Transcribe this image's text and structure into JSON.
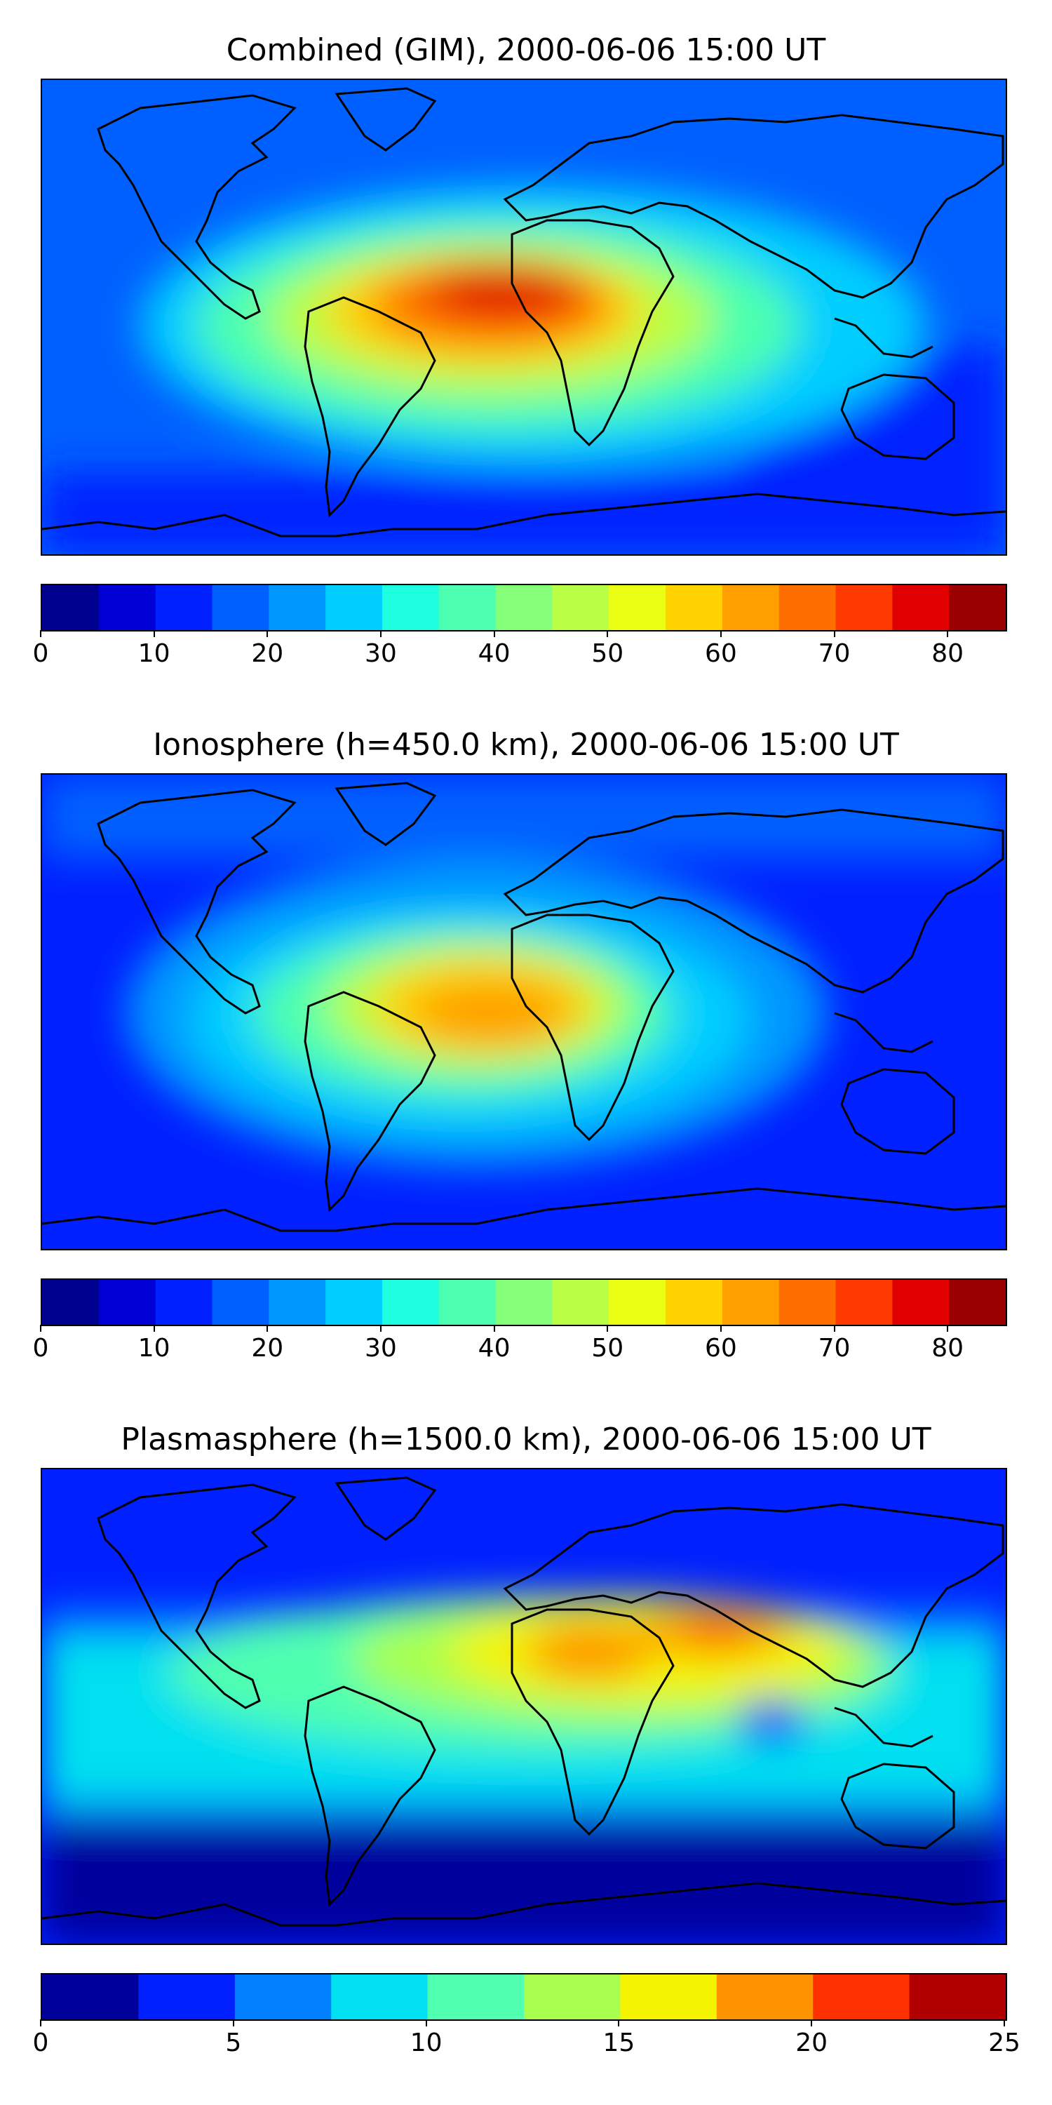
{
  "panels": [
    {
      "title": "Combined (GIM), 2000-06-06 15:00 UT",
      "colorbar": {
        "min": 0,
        "max": 85,
        "step": 5,
        "tick_labels": [
          "0",
          "10",
          "20",
          "30",
          "40",
          "50",
          "60",
          "70",
          "80"
        ],
        "tick_values": [
          0,
          10,
          20,
          30,
          40,
          50,
          60,
          70,
          80
        ],
        "colors": [
          "#00008f",
          "#0000d6",
          "#0020ff",
          "#0060ff",
          "#0098ff",
          "#00ceff",
          "#1effe0",
          "#4cffb0",
          "#86ff78",
          "#b8ff46",
          "#eaff14",
          "#ffd200",
          "#ffa000",
          "#ff6e00",
          "#ff3a00",
          "#e00000",
          "#9a0000"
        ]
      }
    },
    {
      "title": "Ionosphere  (h=450.0 km), 2000-06-06 15:00 UT",
      "colorbar": {
        "min": 0,
        "max": 85,
        "step": 5,
        "tick_labels": [
          "0",
          "10",
          "20",
          "30",
          "40",
          "50",
          "60",
          "70",
          "80"
        ],
        "tick_values": [
          0,
          10,
          20,
          30,
          40,
          50,
          60,
          70,
          80
        ],
        "colors": [
          "#00008f",
          "#0000d6",
          "#0020ff",
          "#0060ff",
          "#0098ff",
          "#00ceff",
          "#1effe0",
          "#4cffb0",
          "#86ff78",
          "#b8ff46",
          "#eaff14",
          "#ffd200",
          "#ffa000",
          "#ff6e00",
          "#ff3a00",
          "#e00000",
          "#9a0000"
        ]
      }
    },
    {
      "title": "Plasmasphere (h=1500.0 km), 2000-06-06 15:00 UT",
      "colorbar": {
        "min": 0,
        "max": 25,
        "step": 2.5,
        "tick_labels": [
          "0",
          "5",
          "10",
          "15",
          "20",
          "25"
        ],
        "tick_values": [
          0,
          5,
          10,
          15,
          20,
          25
        ],
        "colors": [
          "#00009c",
          "#0020ff",
          "#0080ff",
          "#00e0f0",
          "#50ffb0",
          "#a8ff50",
          "#f4f400",
          "#ff9400",
          "#ff3000",
          "#b00000"
        ]
      }
    }
  ]
}
